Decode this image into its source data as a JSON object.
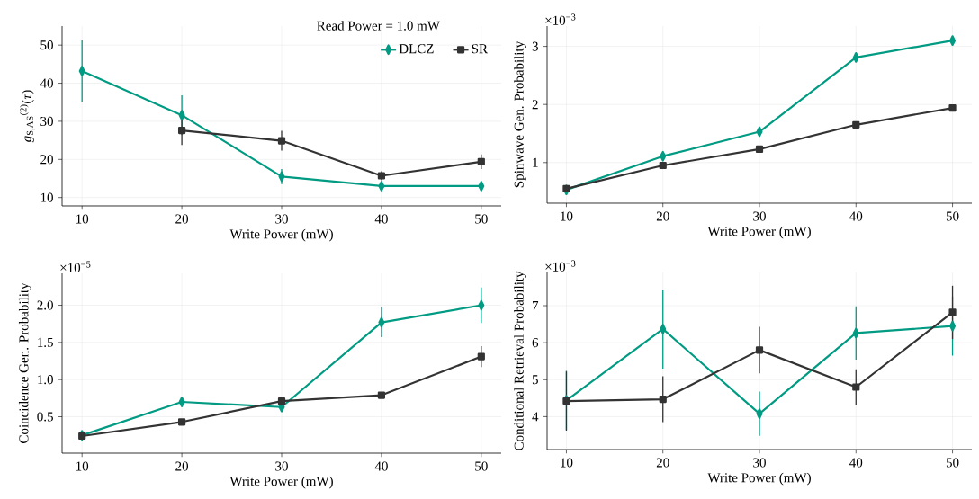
{
  "chart_data": [
    {
      "type": "line",
      "x": [
        10,
        20,
        30,
        40,
        50
      ],
      "xlabel": "Write Power (mW)",
      "ylabel": "*g*$_{S,AS}$$^{(2)}$(*τ*)",
      "xlim": [
        8,
        52
      ],
      "xticks": [
        10,
        20,
        30,
        40,
        50
      ],
      "ylim": [
        7.8,
        55
      ],
      "yticks": [
        10,
        20,
        30,
        40,
        50
      ],
      "grid": true,
      "legend": "top right",
      "legend_title": "Read Power = 1.0 mW",
      "line_style": "solid",
      "series": [
        {
          "name": "DLCZ",
          "color": "#009b82",
          "marker": "diamond",
          "values": [
            43.2,
            31.6,
            15.5,
            13.0,
            13.0
          ],
          "errors": [
            8,
            5.2,
            2,
            1,
            1
          ]
        },
        {
          "name": "SR",
          "color": "#333333",
          "marker": "square",
          "values": [
            null,
            27.6,
            24.9,
            15.7,
            19.4
          ],
          "errors": [
            null,
            3.8,
            2.6,
            1.2,
            1.9
          ]
        }
      ]
    },
    {
      "type": "line",
      "x": [
        10,
        20,
        30,
        40,
        50
      ],
      "xlabel": "Write Power (mW)",
      "ylabel": "Spinwave Gen. Probability",
      "xlim": [
        8,
        52
      ],
      "xticks": [
        10,
        20,
        30,
        40,
        50
      ],
      "ylim": [
        0.3,
        3.35
      ],
      "yticks": [
        1,
        2,
        3
      ],
      "grid": true,
      "line_style": "solid",
      "annotations": [
        "×10$^{−3}$"
      ],
      "series": [
        {
          "color": "#009b82",
          "marker": "diamond",
          "values": [
            0.53,
            1.11,
            1.53,
            2.81,
            3.1
          ]
        },
        {
          "color": "#333333",
          "marker": "square",
          "values": [
            0.55,
            0.95,
            1.23,
            1.65,
            1.94
          ]
        }
      ]
    },
    {
      "type": "line",
      "x": [
        10,
        20,
        30,
        40,
        50
      ],
      "xlabel": "Write Power (mW)",
      "ylabel": "Coincidence Gen. Probability",
      "xlim": [
        8,
        52
      ],
      "xticks": [
        10,
        20,
        30,
        40,
        50
      ],
      "ylim": [
        0.01,
        2.43
      ],
      "yticks": [
        0.5,
        {
          "value": 1,
          "label": "1.0"
        },
        1.5,
        {
          "value": 2,
          "label": "2.0"
        }
      ],
      "grid": true,
      "line_style": "solid",
      "annotations": [
        "×10$^{−5}$"
      ],
      "series": [
        {
          "color": "#009b82",
          "marker": "diamond",
          "values": [
            0.25,
            0.7,
            0.63,
            1.77,
            2.0
          ],
          "errors": [
            0.05,
            0.06,
            0.05,
            0.2,
            0.24
          ]
        },
        {
          "color": "#333333",
          "marker": "square",
          "values": [
            0.24,
            0.43,
            0.71,
            0.79,
            1.31
          ],
          "errors": [
            0.03,
            0.03,
            0.04,
            0.04,
            0.14
          ]
        }
      ]
    },
    {
      "type": "line",
      "x": [
        10,
        20,
        30,
        40,
        50
      ],
      "xlabel": "Write Power (mW)",
      "ylabel": "Conditional Retrieval Probability",
      "xlim": [
        8,
        52
      ],
      "xticks": [
        10,
        20,
        30,
        40,
        50
      ],
      "ylim": [
        3.11,
        7.9
      ],
      "yticks": [
        4,
        5,
        6,
        7
      ],
      "grid": true,
      "line_style": "solid",
      "annotations": [
        "×10$^{−3}$"
      ],
      "series": [
        {
          "color": "#009b82",
          "marker": "diamond",
          "values": [
            4.44,
            6.37,
            4.08,
            6.26,
            6.45
          ],
          "errors": [
            0.8,
            1.07,
            0.6,
            0.72,
            0.8
          ]
        },
        {
          "color": "#333333",
          "marker": "square",
          "values": [
            4.42,
            4.47,
            5.8,
            4.8,
            6.82
          ],
          "errors": [
            0.8,
            0.62,
            0.63,
            0.48,
            0.72
          ]
        }
      ]
    }
  ]
}
